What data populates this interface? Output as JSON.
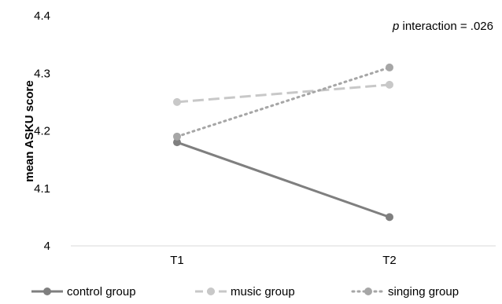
{
  "chart_data": {
    "type": "line",
    "categories": [
      "T1",
      "T2"
    ],
    "ylabel": "mean ASKU score",
    "ylim": [
      4,
      4.4
    ],
    "yticks": [
      "4",
      "4.1",
      "4.2",
      "4.3",
      "4.4"
    ],
    "ytick_values": [
      4,
      4.1,
      4.2,
      4.3,
      4.4
    ],
    "annotation": {
      "italic": "p",
      "text": " interaction = .026"
    },
    "legend_position": "bottom",
    "series": [
      {
        "name": "control group",
        "values": [
          4.18,
          4.05
        ],
        "color": "#7f7f7f",
        "style": "solid"
      },
      {
        "name": "music group",
        "values": [
          4.25,
          4.28
        ],
        "color": "#c8c8c8",
        "style": "dashed"
      },
      {
        "name": "singing group",
        "values": [
          4.19,
          4.31
        ],
        "color": "#a6a6a6",
        "style": "dotted"
      }
    ]
  }
}
